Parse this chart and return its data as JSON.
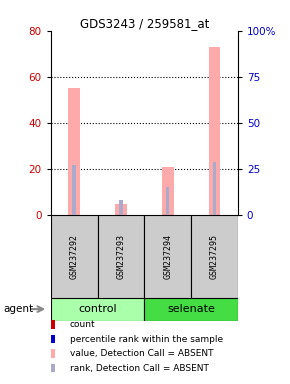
{
  "title": "GDS3243 / 259581_at",
  "samples": [
    "GSM237292",
    "GSM237293",
    "GSM237294",
    "GSM237295"
  ],
  "pink_bars": [
    55,
    5,
    21,
    73
  ],
  "blue_bars": [
    27,
    8,
    15,
    29
  ],
  "left_ylim": [
    0,
    80
  ],
  "right_ylim": [
    0,
    100
  ],
  "left_yticks": [
    0,
    20,
    40,
    60,
    80
  ],
  "right_yticks": [
    0,
    25,
    50,
    75,
    100
  ],
  "left_color": "#cc0000",
  "right_color": "#0000cc",
  "pink_color": "#ffaaaa",
  "blue_color": "#aaaacc",
  "control_color": "#aaffaa",
  "selenate_color": "#44dd44",
  "sample_box_color": "#cccccc",
  "legend_items": [
    {
      "color": "#cc0000",
      "label": "count"
    },
    {
      "color": "#0000cc",
      "label": "percentile rank within the sample"
    },
    {
      "color": "#ffaaaa",
      "label": "value, Detection Call = ABSENT"
    },
    {
      "color": "#aaaacc",
      "label": "rank, Detection Call = ABSENT"
    }
  ],
  "pink_bar_width": 0.25,
  "blue_bar_width": 0.07,
  "figsize": [
    2.9,
    3.84
  ],
  "dpi": 100
}
